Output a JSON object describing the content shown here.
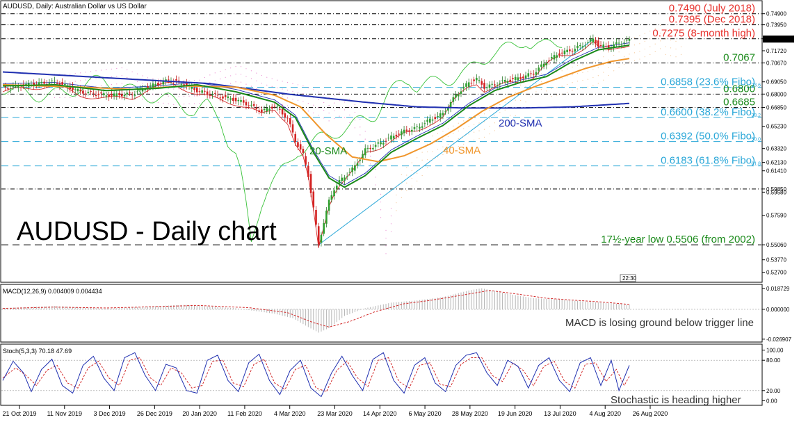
{
  "chart_data": {
    "type": "candlestick",
    "title": "AUDUSD, Daily:  Australian Dollar vs US Dollar",
    "watermark": "AUDUSD - Daily chart",
    "price_axis": {
      "range": [
        0.522,
        0.756
      ],
      "ticks": [
        "0.74900",
        "0.73950",
        "0.72750",
        "0.71720",
        "0.70670",
        "0.69050",
        "0.68000",
        "0.66850",
        "0.65230",
        "0.63320",
        "0.62130",
        "0.61410",
        "0.59850",
        "0.59580",
        "0.57590",
        "0.55060",
        "0.53770",
        "0.52700"
      ]
    },
    "time_axis": {
      "labels": [
        "21 Oct 2019",
        "11 Nov 2019",
        "3 Dec 2019",
        "26 Dec 2019",
        "20 Jan 2020",
        "11 Feb 2020",
        "4 Mar 2020",
        "23 Mar 2020",
        "14 Apr 2020",
        "6 May 2020",
        "28 May 2020",
        "19 Jun 2020",
        "13 Jul 2020",
        "4 Aug 2020",
        "26 Aug 2020"
      ]
    },
    "levels": [
      {
        "value": 0.749,
        "label": "0.7490 (July 2018)",
        "color": "#e8322d",
        "style": "dashdot"
      },
      {
        "value": 0.7395,
        "label": "0.7395 (Dec 2018)",
        "color": "#e8322d",
        "style": "dashdot"
      },
      {
        "value": 0.7275,
        "label": "0.7275 (8-month high)",
        "color": "#e8322d",
        "style": "dashdot"
      },
      {
        "value": 0.7067,
        "label": "0.7067",
        "color": "#1a8a1a",
        "style": "dashdot"
      },
      {
        "value": 0.6858,
        "label": "0.6858 (23.6% Fibo)",
        "color": "#2aa7d8",
        "style": "dash"
      },
      {
        "value": 0.68,
        "label": "0.6800",
        "color": "#1a8a1a",
        "style": "dashdot"
      },
      {
        "value": 0.6685,
        "label": "0.6685",
        "color": "#1a8a1a",
        "style": "dashdot"
      },
      {
        "value": 0.66,
        "label": "0.6600 (38.2% Fibo)",
        "color": "#2aa7d8",
        "style": "dash"
      },
      {
        "value": 0.6392,
        "label": "0.6392 (50.0% Fibo)",
        "color": "#2aa7d8",
        "style": "dash"
      },
      {
        "value": 0.6183,
        "label": "0.6183 (61.8% Fibo)",
        "color": "#2aa7d8",
        "style": "dash"
      },
      {
        "value": 0.5985,
        "label": "",
        "color": "#1a8a1a",
        "style": "dashdot"
      },
      {
        "value": 0.5506,
        "label": "17½-year low 0.5506 (from 2002)",
        "color": "#1a8a1a",
        "style": "dash"
      }
    ],
    "fibo_tags": [
      "23.6",
      "38.2",
      "50.0",
      "61.8"
    ],
    "sma_labels": {
      "sma20": "20-SMA",
      "sma40": "40-SMA",
      "sma200": "200-SMA"
    },
    "price_series": [
      [
        0,
        0.685
      ],
      [
        10,
        0.688
      ],
      [
        20,
        0.6905
      ],
      [
        30,
        0.682
      ],
      [
        40,
        0.679
      ],
      [
        50,
        0.68
      ],
      [
        55,
        0.6855
      ],
      [
        60,
        0.689
      ],
      [
        65,
        0.6925
      ],
      [
        70,
        0.688
      ],
      [
        75,
        0.683
      ],
      [
        80,
        0.68
      ],
      [
        90,
        0.675
      ],
      [
        95,
        0.671
      ],
      [
        100,
        0.665
      ],
      [
        105,
        0.67
      ],
      [
        110,
        0.659
      ],
      [
        113,
        0.64
      ],
      [
        116,
        0.628
      ],
      [
        118,
        0.61
      ],
      [
        120,
        0.582
      ],
      [
        122,
        0.551
      ],
      [
        124,
        0.57
      ],
      [
        126,
        0.588
      ],
      [
        128,
        0.599
      ],
      [
        130,
        0.605
      ],
      [
        133,
        0.611
      ],
      [
        136,
        0.618
      ],
      [
        140,
        0.632
      ],
      [
        145,
        0.637
      ],
      [
        150,
        0.643
      ],
      [
        155,
        0.648
      ],
      [
        160,
        0.651
      ],
      [
        165,
        0.658
      ],
      [
        170,
        0.663
      ],
      [
        175,
        0.679
      ],
      [
        180,
        0.69
      ],
      [
        183,
        0.693
      ],
      [
        186,
        0.686
      ],
      [
        190,
        0.688
      ],
      [
        195,
        0.692
      ],
      [
        200,
        0.694
      ],
      [
        205,
        0.698
      ],
      [
        210,
        0.708
      ],
      [
        215,
        0.715
      ],
      [
        220,
        0.718
      ],
      [
        225,
        0.723
      ],
      [
        228,
        0.727
      ],
      [
        230,
        0.722
      ],
      [
        234,
        0.72
      ],
      [
        238,
        0.724
      ],
      [
        242,
        0.726
      ]
    ],
    "sma20": [
      [
        0,
        0.687
      ],
      [
        20,
        0.688
      ],
      [
        40,
        0.683
      ],
      [
        60,
        0.685
      ],
      [
        75,
        0.688
      ],
      [
        90,
        0.682
      ],
      [
        105,
        0.673
      ],
      [
        113,
        0.66
      ],
      [
        120,
        0.63
      ],
      [
        126,
        0.608
      ],
      [
        132,
        0.6
      ],
      [
        140,
        0.61
      ],
      [
        150,
        0.63
      ],
      [
        160,
        0.642
      ],
      [
        170,
        0.653
      ],
      [
        180,
        0.67
      ],
      [
        190,
        0.683
      ],
      [
        200,
        0.69
      ],
      [
        210,
        0.695
      ],
      [
        220,
        0.708
      ],
      [
        230,
        0.718
      ],
      [
        242,
        0.722
      ]
    ],
    "sma40": [
      [
        0,
        0.688
      ],
      [
        30,
        0.686
      ],
      [
        50,
        0.684
      ],
      [
        70,
        0.687
      ],
      [
        90,
        0.686
      ],
      [
        105,
        0.679
      ],
      [
        115,
        0.669
      ],
      [
        125,
        0.645
      ],
      [
        135,
        0.626
      ],
      [
        145,
        0.622
      ],
      [
        155,
        0.627
      ],
      [
        165,
        0.637
      ],
      [
        175,
        0.65
      ],
      [
        185,
        0.665
      ],
      [
        195,
        0.677
      ],
      [
        205,
        0.686
      ],
      [
        215,
        0.694
      ],
      [
        225,
        0.702
      ],
      [
        235,
        0.708
      ],
      [
        242,
        0.7105
      ]
    ],
    "sma200": [
      [
        0,
        0.699
      ],
      [
        40,
        0.694
      ],
      [
        80,
        0.689
      ],
      [
        110,
        0.68
      ],
      [
        140,
        0.673
      ],
      [
        160,
        0.669
      ],
      [
        180,
        0.668
      ],
      [
        200,
        0.668
      ],
      [
        220,
        0.669
      ],
      [
        242,
        0.672
      ]
    ],
    "macd": {
      "label": "MACD(12,26,9) 0.004009 0.004434",
      "range": [
        -0.027,
        0.02
      ],
      "ticks": [
        "0.018729",
        "0.000000",
        "-0.026907"
      ],
      "note": "MACD is losing ground below trigger line",
      "histogram": [
        [
          0,
          0.001
        ],
        [
          20,
          0.003
        ],
        [
          40,
          0.0005
        ],
        [
          60,
          0.003
        ],
        [
          70,
          0.004
        ],
        [
          90,
          0.001
        ],
        [
          105,
          -0.004
        ],
        [
          112,
          -0.008
        ],
        [
          118,
          -0.016
        ],
        [
          122,
          -0.021
        ],
        [
          126,
          -0.017
        ],
        [
          132,
          -0.006
        ],
        [
          140,
          0.001
        ],
        [
          150,
          0.006
        ],
        [
          160,
          0.008
        ],
        [
          170,
          0.011
        ],
        [
          180,
          0.017
        ],
        [
          185,
          0.019
        ],
        [
          195,
          0.014
        ],
        [
          205,
          0.01
        ],
        [
          215,
          0.009
        ],
        [
          225,
          0.007
        ],
        [
          235,
          0.0055
        ],
        [
          242,
          0.004
        ]
      ],
      "signal": [
        [
          0,
          0.0008
        ],
        [
          20,
          0.002
        ],
        [
          40,
          0.0012
        ],
        [
          60,
          0.0025
        ],
        [
          75,
          0.0035
        ],
        [
          95,
          0.0015
        ],
        [
          110,
          -0.003
        ],
        [
          120,
          -0.012
        ],
        [
          126,
          -0.016
        ],
        [
          134,
          -0.011
        ],
        [
          144,
          -0.002
        ],
        [
          155,
          0.005
        ],
        [
          165,
          0.008
        ],
        [
          178,
          0.013
        ],
        [
          188,
          0.017
        ],
        [
          198,
          0.014
        ],
        [
          210,
          0.01
        ],
        [
          222,
          0.008
        ],
        [
          232,
          0.0065
        ],
        [
          242,
          0.0044
        ]
      ]
    },
    "stochastic": {
      "label": "Stoch(5,3,3) 70.18 47.69",
      "range": [
        -5,
        105
      ],
      "ticks": [
        "100.00",
        "80.00",
        "20.00",
        "0.00"
      ],
      "note": "Stochastic is heading higher",
      "k": [
        [
          0,
          40
        ],
        [
          4,
          78
        ],
        [
          8,
          55
        ],
        [
          11,
          18
        ],
        [
          15,
          62
        ],
        [
          19,
          82
        ],
        [
          23,
          30
        ],
        [
          27,
          15
        ],
        [
          31,
          70
        ],
        [
          35,
          88
        ],
        [
          39,
          45
        ],
        [
          43,
          20
        ],
        [
          47,
          85
        ],
        [
          51,
          95
        ],
        [
          55,
          50
        ],
        [
          59,
          20
        ],
        [
          63,
          72
        ],
        [
          67,
          65
        ],
        [
          71,
          20
        ],
        [
          75,
          15
        ],
        [
          79,
          80
        ],
        [
          83,
          90
        ],
        [
          87,
          40
        ],
        [
          91,
          18
        ],
        [
          95,
          75
        ],
        [
          99,
          92
        ],
        [
          103,
          40
        ],
        [
          107,
          12
        ],
        [
          111,
          60
        ],
        [
          115,
          80
        ],
        [
          119,
          25
        ],
        [
          123,
          8
        ],
        [
          127,
          55
        ],
        [
          131,
          88
        ],
        [
          135,
          50
        ],
        [
          139,
          20
        ],
        [
          143,
          82
        ],
        [
          147,
          95
        ],
        [
          151,
          40
        ],
        [
          155,
          15
        ],
        [
          159,
          70
        ],
        [
          163,
          85
        ],
        [
          167,
          35
        ],
        [
          171,
          18
        ],
        [
          175,
          70
        ],
        [
          179,
          90
        ],
        [
          183,
          95
        ],
        [
          187,
          55
        ],
        [
          191,
          30
        ],
        [
          195,
          80
        ],
        [
          199,
          68
        ],
        [
          203,
          25
        ],
        [
          207,
          70
        ],
        [
          211,
          85
        ],
        [
          215,
          40
        ],
        [
          219,
          18
        ],
        [
          223,
          75
        ],
        [
          227,
          85
        ],
        [
          231,
          30
        ],
        [
          235,
          80
        ],
        [
          238,
          20
        ],
        [
          242,
          70
        ]
      ],
      "d": [
        [
          0,
          45
        ],
        [
          5,
          65
        ],
        [
          9,
          50
        ],
        [
          13,
          30
        ],
        [
          17,
          60
        ],
        [
          21,
          70
        ],
        [
          25,
          35
        ],
        [
          29,
          25
        ],
        [
          33,
          65
        ],
        [
          37,
          78
        ],
        [
          41,
          45
        ],
        [
          45,
          30
        ],
        [
          49,
          80
        ],
        [
          53,
          85
        ],
        [
          57,
          45
        ],
        [
          61,
          30
        ],
        [
          65,
          65
        ],
        [
          69,
          55
        ],
        [
          73,
          25
        ],
        [
          77,
          30
        ],
        [
          81,
          78
        ],
        [
          85,
          80
        ],
        [
          89,
          35
        ],
        [
          93,
          28
        ],
        [
          97,
          72
        ],
        [
          101,
          82
        ],
        [
          105,
          35
        ],
        [
          109,
          22
        ],
        [
          113,
          62
        ],
        [
          117,
          70
        ],
        [
          121,
          25
        ],
        [
          125,
          18
        ],
        [
          129,
          60
        ],
        [
          133,
          78
        ],
        [
          137,
          45
        ],
        [
          141,
          28
        ],
        [
          145,
          80
        ],
        [
          149,
          85
        ],
        [
          153,
          38
        ],
        [
          157,
          25
        ],
        [
          161,
          70
        ],
        [
          165,
          75
        ],
        [
          169,
          32
        ],
        [
          173,
          28
        ],
        [
          177,
          72
        ],
        [
          181,
          85
        ],
        [
          185,
          85
        ],
        [
          189,
          50
        ],
        [
          193,
          38
        ],
        [
          197,
          75
        ],
        [
          201,
          60
        ],
        [
          205,
          30
        ],
        [
          209,
          68
        ],
        [
          213,
          78
        ],
        [
          217,
          38
        ],
        [
          221,
          25
        ],
        [
          225,
          72
        ],
        [
          229,
          75
        ],
        [
          233,
          38
        ],
        [
          237,
          62
        ],
        [
          240,
          30
        ],
        [
          242,
          48
        ]
      ]
    },
    "time_marker": "22:30"
  }
}
